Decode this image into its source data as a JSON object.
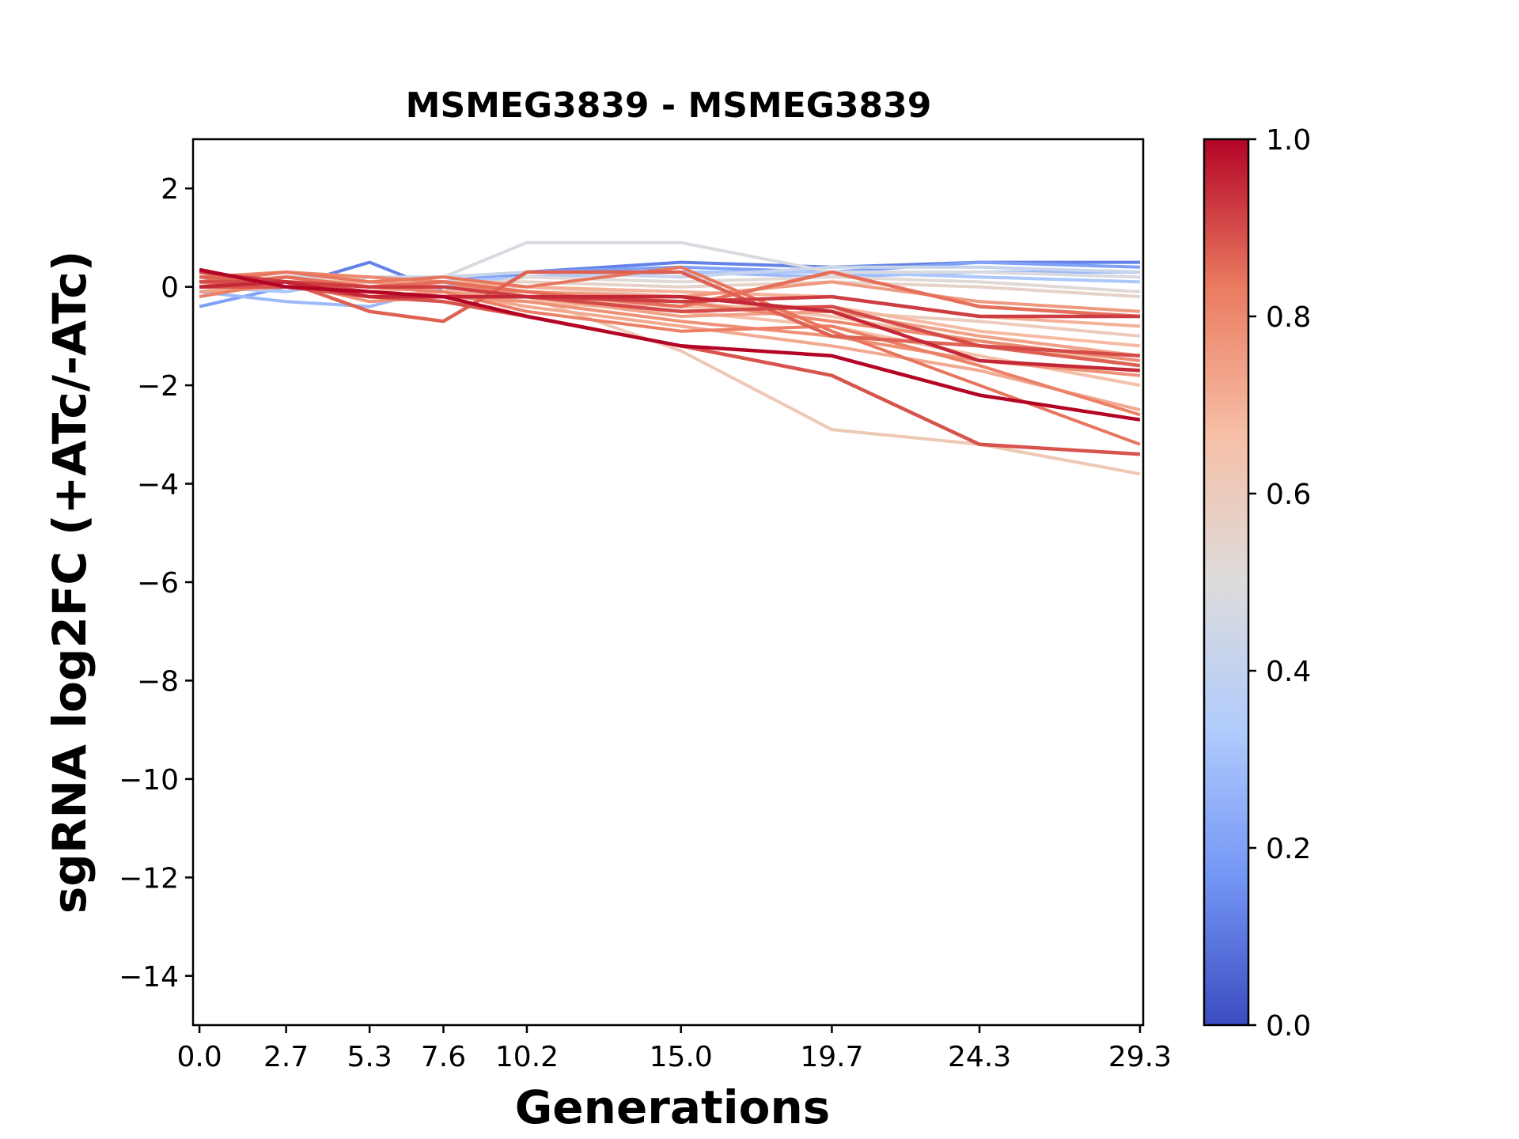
{
  "chart_data": {
    "type": "line",
    "title": "MSMEG3839 - MSMEG3839",
    "xlabel": "Generations",
    "ylabel": "sgRNA log2FC (+ATc/-ATc)",
    "x": [
      0.0,
      2.7,
      5.3,
      7.6,
      10.2,
      15.0,
      19.7,
      24.3,
      29.3
    ],
    "x_tick_labels": [
      "0.0",
      "2.7",
      "5.3",
      "7.6",
      "10.2",
      "15.0",
      "19.7",
      "24.3",
      "29.3"
    ],
    "xlim": [
      -0.2,
      29.4
    ],
    "ylim": [
      -15,
      3
    ],
    "y_ticks": [
      2,
      0,
      -2,
      -4,
      -6,
      -8,
      -10,
      -12,
      -14
    ],
    "y_tick_labels": [
      "2",
      "0",
      "−2",
      "−4",
      "−6",
      "−8",
      "−10",
      "−12",
      "−14"
    ],
    "colorbar": {
      "colormap": "coolwarm",
      "range": [
        0.0,
        1.0
      ],
      "tick_labels": [
        "0.0",
        "0.2",
        "0.4",
        "0.6",
        "0.8",
        "1.0"
      ],
      "colors": [
        "#3b4cc0",
        "#7396f5",
        "#b0cbfc",
        "#dddcdc",
        "#f6bfa6",
        "#ea7b60",
        "#b40426"
      ]
    },
    "series": [
      {
        "c": 0.12,
        "values": [
          0.2,
          0.0,
          0.5,
          -0.1,
          0.3,
          0.5,
          0.4,
          0.5,
          0.5
        ]
      },
      {
        "c": 0.2,
        "values": [
          -0.4,
          0.0,
          0.1,
          0.1,
          0.3,
          0.4,
          0.3,
          0.5,
          0.4
        ]
      },
      {
        "c": 0.28,
        "values": [
          -0.1,
          -0.3,
          -0.4,
          0.0,
          0.2,
          0.3,
          0.2,
          0.3,
          0.3
        ]
      },
      {
        "c": 0.32,
        "values": [
          0.0,
          -0.1,
          0.2,
          0.1,
          0.2,
          0.3,
          0.3,
          0.2,
          0.1
        ]
      },
      {
        "c": 0.42,
        "values": [
          0.1,
          0.2,
          0.2,
          0.2,
          0.3,
          0.2,
          0.4,
          0.4,
          0.3
        ]
      },
      {
        "c": 0.48,
        "values": [
          0.0,
          0.1,
          0.1,
          0.2,
          0.9,
          0.9,
          0.3,
          0.3,
          0.2
        ]
      },
      {
        "c": 0.52,
        "values": [
          0.1,
          0.2,
          0.0,
          -0.1,
          0.2,
          0.1,
          0.2,
          0.1,
          -0.1
        ]
      },
      {
        "c": 0.56,
        "values": [
          0.0,
          0.1,
          0.2,
          0.1,
          0.1,
          0.0,
          0.1,
          0.0,
          -0.2
        ]
      },
      {
        "c": 0.6,
        "values": [
          0.2,
          0.1,
          0.0,
          0.1,
          0.0,
          -0.2,
          -0.5,
          -0.7,
          -1.0
        ]
      },
      {
        "c": 0.62,
        "values": [
          0.1,
          0.2,
          0.0,
          0.0,
          -0.2,
          -1.3,
          -2.9,
          -3.2,
          -3.8
        ]
      },
      {
        "c": 0.64,
        "values": [
          0.0,
          0.0,
          0.1,
          0.0,
          -0.1,
          -0.3,
          -0.6,
          -1.1,
          -1.6
        ]
      },
      {
        "c": 0.66,
        "values": [
          -0.1,
          0.1,
          0.0,
          -0.1,
          -0.3,
          -0.5,
          -0.8,
          -1.4,
          -2.0
        ]
      },
      {
        "c": 0.68,
        "values": [
          0.1,
          0.0,
          -0.1,
          0.0,
          -0.2,
          -0.4,
          -0.4,
          -0.9,
          -1.2
        ]
      },
      {
        "c": 0.7,
        "values": [
          0.2,
          0.1,
          0.1,
          0.1,
          0.0,
          -0.1,
          -0.2,
          -0.6,
          -0.8
        ]
      },
      {
        "c": 0.72,
        "values": [
          0.0,
          0.2,
          0.0,
          -0.1,
          -0.4,
          -0.8,
          -1.2,
          -1.7,
          -2.5
        ]
      },
      {
        "c": 0.74,
        "values": [
          -0.1,
          0.0,
          -0.2,
          -0.1,
          -0.2,
          -0.6,
          -0.5,
          -1.0,
          -1.4
        ]
      },
      {
        "c": 0.76,
        "values": [
          0.1,
          0.3,
          0.1,
          0.0,
          -0.1,
          -0.2,
          0.1,
          -0.3,
          -0.5
        ]
      },
      {
        "c": 0.78,
        "values": [
          0.0,
          0.1,
          -0.3,
          -0.2,
          -0.3,
          -0.7,
          -1.0,
          -1.5,
          -1.8
        ]
      },
      {
        "c": 0.8,
        "values": [
          0.2,
          0.3,
          0.2,
          0.1,
          -0.2,
          -0.3,
          -0.7,
          -1.1,
          -1.5
        ]
      },
      {
        "c": 0.82,
        "values": [
          -0.2,
          0.1,
          0.0,
          -0.1,
          -0.5,
          -0.9,
          -0.8,
          -1.6,
          -2.6
        ]
      },
      {
        "c": 0.84,
        "values": [
          0.1,
          0.3,
          0.1,
          0.2,
          0.0,
          0.4,
          -0.9,
          -2.0,
          -3.2
        ]
      },
      {
        "c": 0.85,
        "values": [
          0.0,
          0.2,
          0.0,
          0.1,
          -0.1,
          -0.4,
          0.3,
          -0.4,
          -0.6
        ]
      },
      {
        "c": 0.87,
        "values": [
          0.2,
          0.1,
          -0.5,
          -0.7,
          0.3,
          0.3,
          -1.0,
          -1.2,
          -1.6
        ]
      },
      {
        "c": 0.89,
        "values": [
          0.0,
          0.0,
          -0.2,
          -0.3,
          -0.6,
          -1.2,
          -1.8,
          -3.2,
          -3.4
        ]
      },
      {
        "c": 0.9,
        "values": [
          0.1,
          0.1,
          -0.1,
          -0.2,
          -0.2,
          -0.5,
          -0.4,
          -1.2,
          -1.4
        ]
      },
      {
        "c": 0.92,
        "values": [
          0.3,
          0.1,
          0.0,
          0.0,
          -0.2,
          -0.3,
          -0.2,
          -0.6,
          -0.6
        ]
      },
      {
        "c": 0.95,
        "values": [
          0.0,
          0.1,
          -0.2,
          -0.2,
          -0.2,
          -0.2,
          -0.5,
          -1.5,
          -1.7
        ]
      },
      {
        "c": 1.0,
        "values": [
          0.35,
          0.0,
          -0.1,
          -0.2,
          -0.6,
          -1.2,
          -1.4,
          -2.2,
          -2.7
        ]
      }
    ]
  }
}
